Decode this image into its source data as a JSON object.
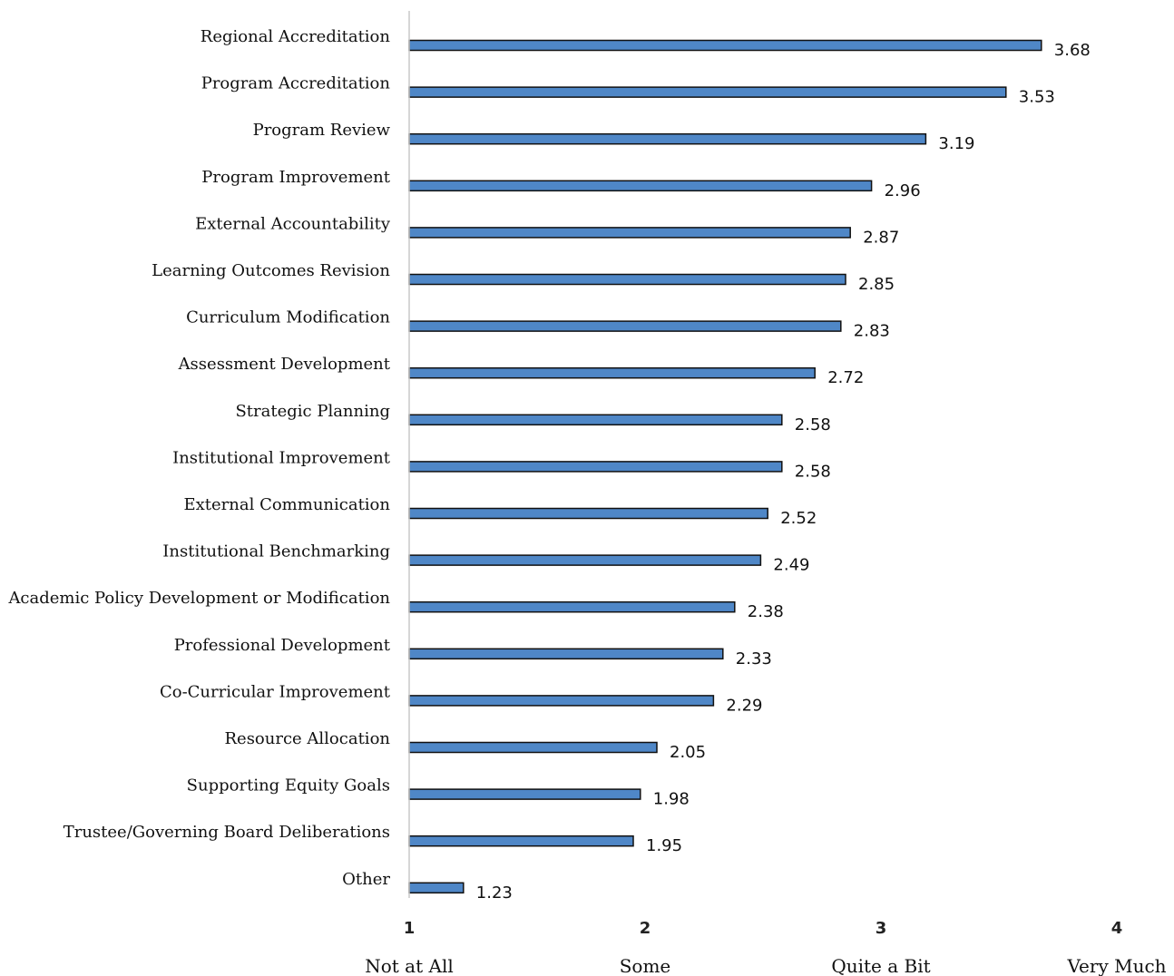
{
  "chart_data": {
    "type": "bar",
    "orientation": "horizontal",
    "categories": [
      "Regional Accreditation",
      "Program Accreditation",
      "Program Review",
      "Program Improvement",
      "External Accountability",
      "Learning Outcomes Revision",
      "Curriculum Modification",
      "Assessment Development",
      "Strategic Planning",
      "Institutional Improvement",
      "External Communication",
      "Institutional Benchmarking",
      "Academic Policy Development or Modification",
      "Professional Development",
      "Co-Curricular Improvement",
      "Resource Allocation",
      "Supporting Equity Goals",
      "Trustee/Governing Board Deliberations",
      "Other"
    ],
    "values": [
      3.68,
      3.53,
      3.19,
      2.96,
      2.87,
      2.85,
      2.83,
      2.72,
      2.58,
      2.58,
      2.52,
      2.49,
      2.38,
      2.33,
      2.29,
      2.05,
      1.98,
      1.95,
      1.23
    ],
    "value_labels": [
      "3.68",
      "3.53",
      "3.19",
      "2.96",
      "2.87",
      "2.85",
      "2.83",
      "2.72",
      "2.58",
      "2.58",
      "2.52",
      "2.49",
      "2.38",
      "2.33",
      "2.29",
      "2.05",
      "1.98",
      "1.95",
      "1.23"
    ],
    "xlim": [
      1,
      4
    ],
    "x_ticks": [
      "1",
      "2",
      "3",
      "4"
    ],
    "x_tick_values": [
      1,
      2,
      3,
      4
    ],
    "scale_labels": [
      "Not at All",
      "Some",
      "Quite a Bit",
      "Very Much"
    ],
    "title": "",
    "xlabel": "",
    "ylabel": "",
    "grid": false,
    "legend": "none",
    "bar_color": "#4f87c7",
    "bar_edge_color": "#111111"
  }
}
